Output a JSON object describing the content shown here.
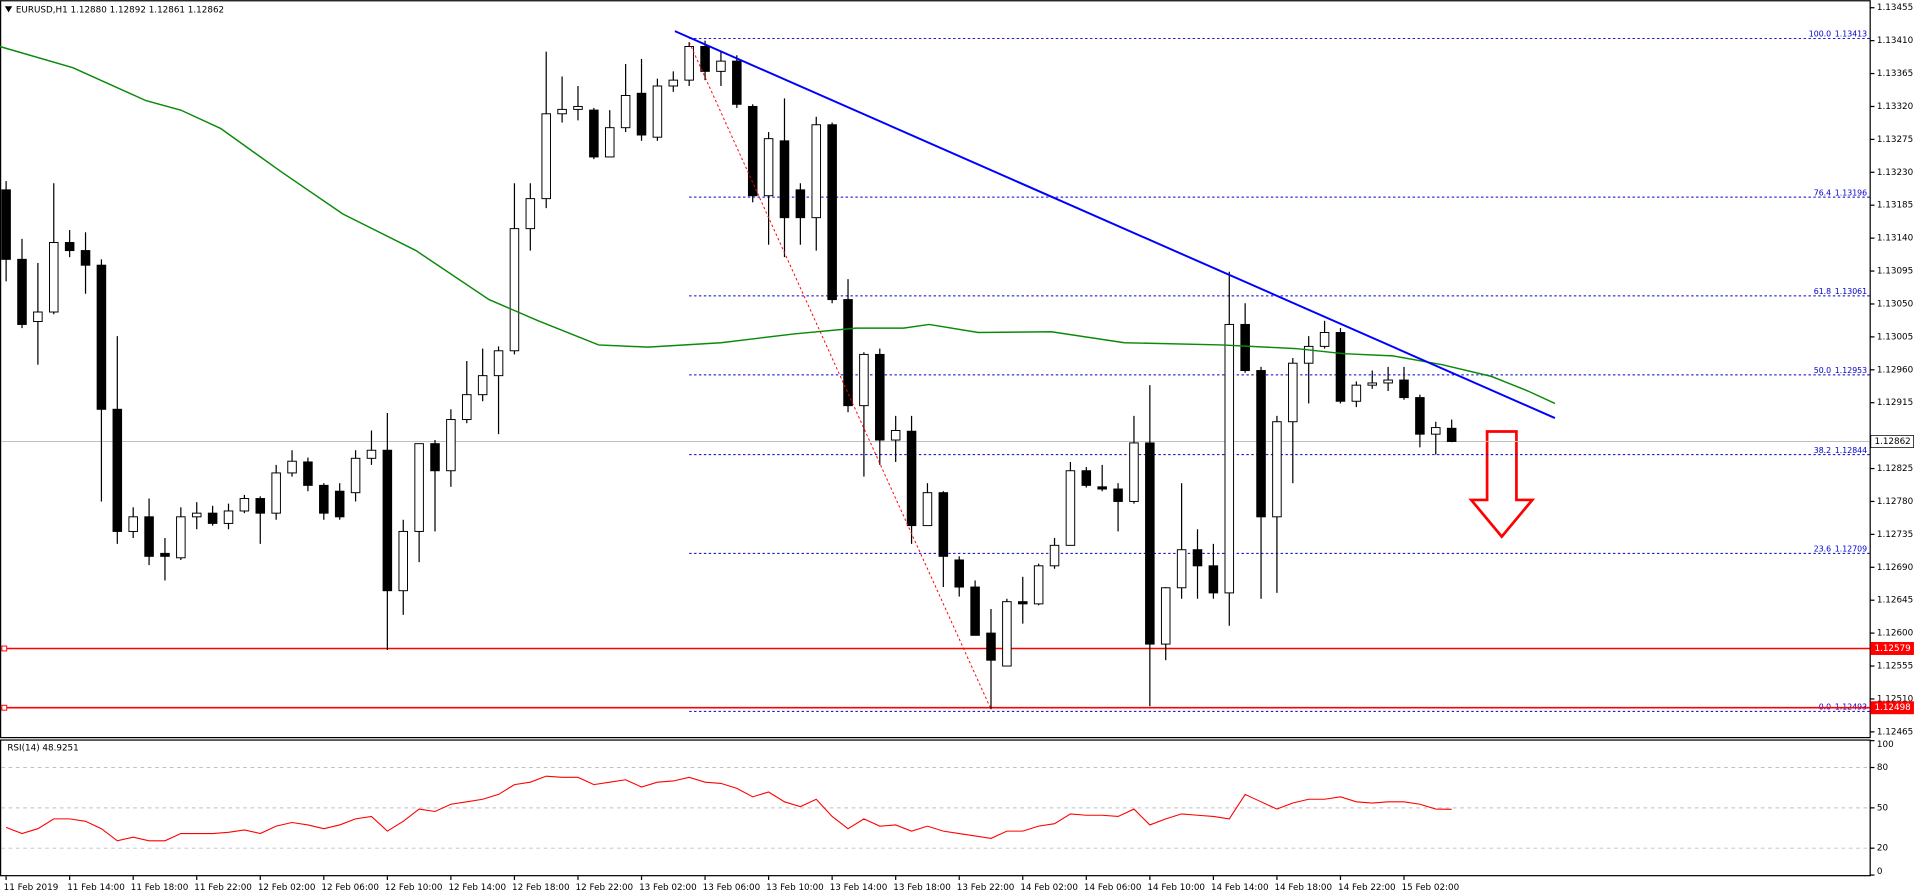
{
  "chart_data": {
    "type": "candlestick",
    "header": "EURUSD,H1  1.12880 1.12892 1.12861 1.12862",
    "categories": [
      "11 Feb 2019",
      null,
      null,
      null,
      "11 Feb 14:00",
      null,
      null,
      null,
      "11 Feb 18:00",
      null,
      null,
      null,
      "11 Feb 22:00",
      null,
      null,
      null,
      "12 Feb 02:00",
      null,
      null,
      null,
      "12 Feb 06:00",
      null,
      null,
      null,
      "12 Feb 10:00",
      null,
      null,
      null,
      "12 Feb 14:00",
      null,
      null,
      null,
      "12 Feb 18:00",
      null,
      null,
      null,
      "12 Feb 22:00",
      null,
      null,
      null,
      "13 Feb 02:00",
      null,
      null,
      null,
      "13 Feb 06:00",
      null,
      null,
      null,
      "13 Feb 10:00",
      null,
      null,
      null,
      "13 Feb 14:00",
      null,
      null,
      null,
      "13 Feb 18:00",
      null,
      null,
      null,
      "13 Feb 22:00",
      null,
      null,
      null,
      "14 Feb 02:00",
      null,
      null,
      null,
      "14 Feb 06:00",
      null,
      null,
      null,
      "14 Feb 10:00",
      null,
      null,
      null,
      "14 Feb 14:00",
      null,
      null,
      null,
      "14 Feb 18:00",
      null,
      null,
      null,
      "14 Feb 22:00",
      null,
      null,
      null,
      "15 Feb 02:00",
      null,
      null,
      null
    ],
    "open": [
      1.13206,
      1.13111,
      1.13026,
      1.13039,
      1.13134,
      1.13123,
      1.13103,
      1.12906,
      1.12739,
      1.12759,
      1.12709,
      1.12703,
      1.12759,
      1.12764,
      1.1275,
      1.12767,
      1.12784,
      1.12764,
      1.12819,
      1.12834,
      1.12802,
      1.12794,
      1.12792,
      1.12839,
      1.1285,
      1.12658,
      1.12739,
      1.12859,
      1.12822,
      1.12892,
      1.12926,
      1.12952,
      1.12986,
      1.13153,
      1.13194,
      1.1331,
      1.13316,
      1.13315,
      1.13251,
      1.13291,
      1.13338,
      1.13278,
      1.13348,
      1.13356,
      1.13402,
      1.13368,
      1.13382,
      1.1332,
      1.13198,
      1.13273,
      1.13206,
      1.13168,
      1.13295,
      1.13056,
      1.12911,
      1.12981,
      1.12864,
      1.12876,
      1.12747,
      1.12792,
      1.127,
      1.12663,
      1.126,
      1.12555,
      1.12643,
      1.1264,
      1.12692,
      1.1272,
      1.12822,
      1.128,
      1.12797,
      1.1278,
      1.1286,
      1.12585,
      1.12662,
      1.12714,
      1.12692,
      1.12655,
      1.13022,
      1.12959,
      1.12759,
      1.12889,
      1.12969,
      1.12992,
      1.13011,
      1.12917,
      1.12939,
      1.12942,
      1.12946,
      1.12922,
      1.12872,
      1.1288
    ],
    "high": [
      1.13218,
      1.13139,
      1.13106,
      1.13215,
      1.13151,
      1.13148,
      1.13111,
      1.13006,
      1.12772,
      1.12784,
      1.1273,
      1.12772,
      1.12779,
      1.12774,
      1.12777,
      1.12789,
      1.12787,
      1.1283,
      1.1285,
      1.1284,
      1.12805,
      1.12805,
      1.1285,
      1.12877,
      1.12901,
      1.12755,
      1.12859,
      1.12864,
      1.12906,
      1.12972,
      1.12989,
      1.12992,
      1.13215,
      1.13215,
      1.13395,
      1.13361,
      1.13348,
      1.13318,
      1.13315,
      1.13378,
      1.13385,
      1.13358,
      1.13368,
      1.13408,
      1.1341,
      1.13395,
      1.1339,
      1.13323,
      1.13285,
      1.13331,
      1.13215,
      1.13306,
      1.13298,
      1.13084,
      1.12984,
      1.12989,
      1.12897,
      1.12897,
      1.12805,
      1.12794,
      1.12705,
      1.12672,
      1.12633,
      1.12647,
      1.12677,
      1.12695,
      1.1273,
      1.12834,
      1.12827,
      1.1283,
      1.12805,
      1.12897,
      1.12939,
      1.12663,
      1.12805,
      1.12742,
      1.12722,
      1.13094,
      1.13051,
      1.12964,
      1.12897,
      1.12976,
      1.13006,
      1.13027,
      1.13017,
      1.12944,
      1.12959,
      1.12964,
      1.12964,
      1.12926,
      1.12889,
      1.12892
    ],
    "low": [
      1.13081,
      1.13017,
      1.12967,
      1.13036,
      1.13114,
      1.13064,
      1.1278,
      1.12722,
      1.1273,
      1.12693,
      1.12672,
      1.127,
      1.12742,
      1.12747,
      1.12742,
      1.12764,
      1.12722,
      1.12755,
      1.12814,
      1.12794,
      1.12755,
      1.12755,
      1.1278,
      1.1283,
      1.12577,
      1.12625,
      1.12697,
      1.12739,
      1.128,
      1.12887,
      1.12917,
      1.12872,
      1.12981,
      1.13123,
      1.13181,
      1.13298,
      1.13301,
      1.13248,
      1.13251,
      1.13285,
      1.13273,
      1.13273,
      1.1334,
      1.13348,
      1.13356,
      1.13348,
      1.13318,
      1.13189,
      1.13131,
      1.13114,
      1.13131,
      1.13123,
      1.13051,
      1.12902,
      1.12814,
      1.1283,
      1.12834,
      1.12722,
      1.12747,
      1.12663,
      1.1265,
      1.12597,
      1.12496,
      1.12555,
      1.12613,
      1.12638,
      1.12688,
      1.1272,
      1.12799,
      1.12794,
      1.12739,
      1.12777,
      1.125,
      1.12563,
      1.12647,
      1.12647,
      1.12647,
      1.1261,
      1.12956,
      1.12647,
      1.12655,
      1.12805,
      1.12914,
      1.12989,
      1.12914,
      1.12909,
      1.12934,
      1.12931,
      1.12919,
      1.12854,
      1.12844,
      1.12861
    ],
    "close": [
      1.13111,
      1.13022,
      1.13039,
      1.13134,
      1.13123,
      1.13103,
      1.12906,
      1.12739,
      1.12759,
      1.12705,
      1.12705,
      1.12759,
      1.12764,
      1.1275,
      1.12767,
      1.12784,
      1.12764,
      1.12819,
      1.12835,
      1.12802,
      1.12764,
      1.12759,
      1.12839,
      1.1285,
      1.12658,
      1.12739,
      1.12859,
      1.12822,
      1.12892,
      1.12926,
      1.12952,
      1.12986,
      1.13153,
      1.13194,
      1.1331,
      1.13316,
      1.1332,
      1.13251,
      1.13291,
      1.13335,
      1.13281,
      1.13348,
      1.13356,
      1.13402,
      1.13368,
      1.13382,
      1.13323,
      1.13198,
      1.13276,
      1.13168,
      1.13168,
      1.13295,
      1.13056,
      1.12911,
      1.12981,
      1.12864,
      1.12877,
      1.12747,
      1.12792,
      1.12705,
      1.12663,
      1.12597,
      1.12563,
      1.12643,
      1.1264,
      1.12692,
      1.1272,
      1.12822,
      1.12802,
      1.12797,
      1.1278,
      1.1286,
      1.12585,
      1.12662,
      1.12714,
      1.12692,
      1.12655,
      1.13022,
      1.12959,
      1.12759,
      1.12889,
      1.12969,
      1.12992,
      1.13011,
      1.12917,
      1.12939,
      1.12942,
      1.12946,
      1.12922,
      1.12872,
      1.12881,
      1.12862
    ],
    "ylim": [
      1.12458,
      1.13462
    ],
    "yticks": [
      1.13455,
      {
        "value": 1.1341,
        "label": "1.13410"
      },
      1.13365,
      {
        "value": 1.1332,
        "label": "1.13320"
      },
      1.13275,
      {
        "value": 1.1323,
        "label": "1.13230"
      },
      1.13185,
      {
        "value": 1.1314,
        "label": "1.13140"
      },
      1.13095,
      {
        "value": 1.1305,
        "label": "1.13050"
      },
      1.13005,
      {
        "value": 1.1296,
        "label": "1.12960"
      },
      1.12915,
      1.12825,
      {
        "value": 1.1278,
        "label": "1.12780"
      },
      1.12735,
      {
        "value": 1.1269,
        "label": "1.12690"
      },
      1.12645,
      {
        "value": 1.126,
        "label": "1.12600"
      },
      1.12555,
      {
        "value": 1.1251,
        "label": "1.12510"
      },
      1.12465
    ],
    "ma": {
      "color": "#0a8a0a",
      "x": [
        -0.4,
        4.2,
        8.8,
        11,
        13.5,
        17.3,
        21.2,
        25.8,
        30.4,
        33.5,
        37.3,
        40.4,
        45,
        49.6,
        53.5,
        56.5,
        58.1,
        61.2,
        65.8,
        70.4,
        76.5,
        81.2,
        84.2,
        87.3,
        90.4,
        93.5,
        95.8,
        97.5
      ],
      "values": [
        1.13402,
        1.13373,
        1.13328,
        1.13315,
        1.1329,
        1.13231,
        1.13173,
        1.13123,
        1.13056,
        1.13027,
        1.12994,
        1.12991,
        1.12997,
        1.13009,
        1.13017,
        1.13017,
        1.13022,
        1.13011,
        1.13012,
        1.12997,
        1.12994,
        1.12989,
        1.12982,
        1.12979,
        1.12967,
        1.12951,
        1.12931,
        1.12914
      ]
    },
    "trendline": {
      "color": "#0000ff",
      "x": [
        42.1,
        97.5
      ],
      "values": [
        1.13423,
        1.12894
      ]
    },
    "fib_line": {
      "color": "#ff0000",
      "x": [
        43,
        62
      ],
      "values": [
        1.13408,
        1.12496
      ]
    },
    "fibo": {
      "color": "#0000cd",
      "start": 43,
      "levels": [
        {
          "ratio": "100.0",
          "price": 1.13413
        },
        {
          "ratio": "76.4",
          "price": 1.13196
        },
        {
          "ratio": "61.8",
          "price": 1.13061
        },
        {
          "ratio": "50.0",
          "price": 1.12953
        },
        {
          "ratio": "38.2",
          "price": 1.12844
        },
        {
          "ratio": "23.6",
          "price": 1.12709
        },
        {
          "ratio": "0.0",
          "price": 1.12493
        }
      ]
    },
    "levels": [
      {
        "price": 1.12579,
        "color": "#ff0000"
      },
      {
        "price": 1.12498,
        "color": "#ff0000"
      }
    ],
    "current_price": 1.12862,
    "rsi": {
      "title": "RSI(14) 48.9251",
      "color": "#ff0000",
      "ylim": [
        0,
        100
      ],
      "yticks": [
        100,
        80,
        50,
        20,
        0
      ],
      "levels": [
        80,
        50,
        20
      ],
      "values": [
        35.5,
        30.9,
        34.5,
        41.8,
        41.8,
        40,
        34.5,
        25.5,
        28.2,
        25.5,
        25.5,
        30.9,
        30.9,
        30.9,
        31.8,
        33.6,
        30.9,
        36.4,
        39.1,
        37.3,
        34.5,
        37.3,
        41.8,
        43.6,
        32.7,
        40,
        49.1,
        47.3,
        52.7,
        54.5,
        56.4,
        60,
        67.3,
        69.1,
        73.6,
        72.7,
        72.7,
        67.3,
        69.1,
        70.9,
        65.5,
        69.1,
        70,
        72.7,
        69.1,
        68.2,
        64.5,
        58.2,
        61.8,
        54.5,
        50.9,
        56.4,
        43.6,
        34.5,
        41.8,
        36.4,
        37.3,
        32.7,
        36.4,
        32.7,
        30.9,
        29.1,
        27.3,
        32.7,
        32.7,
        36.4,
        38.2,
        45.5,
        44.5,
        44.5,
        43.6,
        49.1,
        37.3,
        41.8,
        45.5,
        44.5,
        43.6,
        41.8,
        60,
        54.5,
        49.1,
        53.6,
        56.4,
        56.4,
        58.2,
        54.5,
        53.6,
        54.5,
        54.5,
        52.7,
        49.1,
        48.9
      ]
    }
  }
}
